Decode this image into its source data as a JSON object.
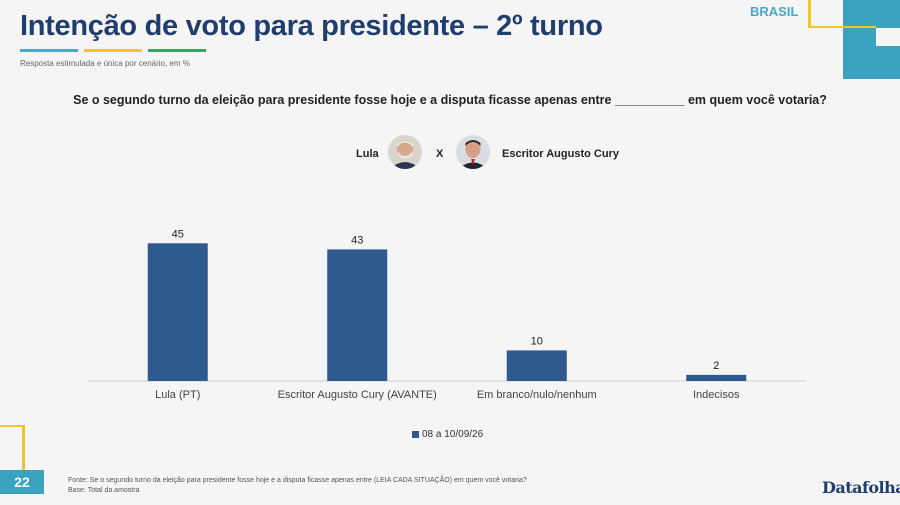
{
  "header": {
    "title": "Intenção de voto para presidente – 2º turno",
    "subtitle": "Resposta estimulada e única por cenário, em %",
    "region": "BRASIL"
  },
  "question": "Se o segundo turno da eleição para presidente fosse hoje e a disputa ficasse apenas entre __________ em quem você votaria?",
  "candidates": {
    "left": "Lula",
    "vs": "X",
    "right": "Escritor Augusto Cury"
  },
  "chart_data": {
    "type": "bar",
    "categories": [
      "Lula (PT)",
      "Escritor Augusto Cury (AVANTE)",
      "Em branco/nulo/nenhum",
      "Indecisos"
    ],
    "series": [
      {
        "name": "08 a 10/09/26",
        "values": [
          45,
          43,
          10,
          2
        ]
      }
    ],
    "ylim": [
      0,
      50
    ],
    "grid": false,
    "legend": "bottom-center",
    "data_labels": true
  },
  "colors": {
    "bar": "#2f5a8f",
    "title": "#1f3d6d",
    "accent_teal": "#3aa3bf",
    "accent_yellow": "#f0c62c"
  },
  "footer": {
    "source": "Fonte: Se o segundo turno da eleição para presidente fosse hoje e a disputa ficasse apenas entre (LEIA CADA SITUAÇÃO) em quem você votaria?",
    "base": "Base: Total da amostra",
    "page_number": "22",
    "logo": "Datafolha"
  }
}
